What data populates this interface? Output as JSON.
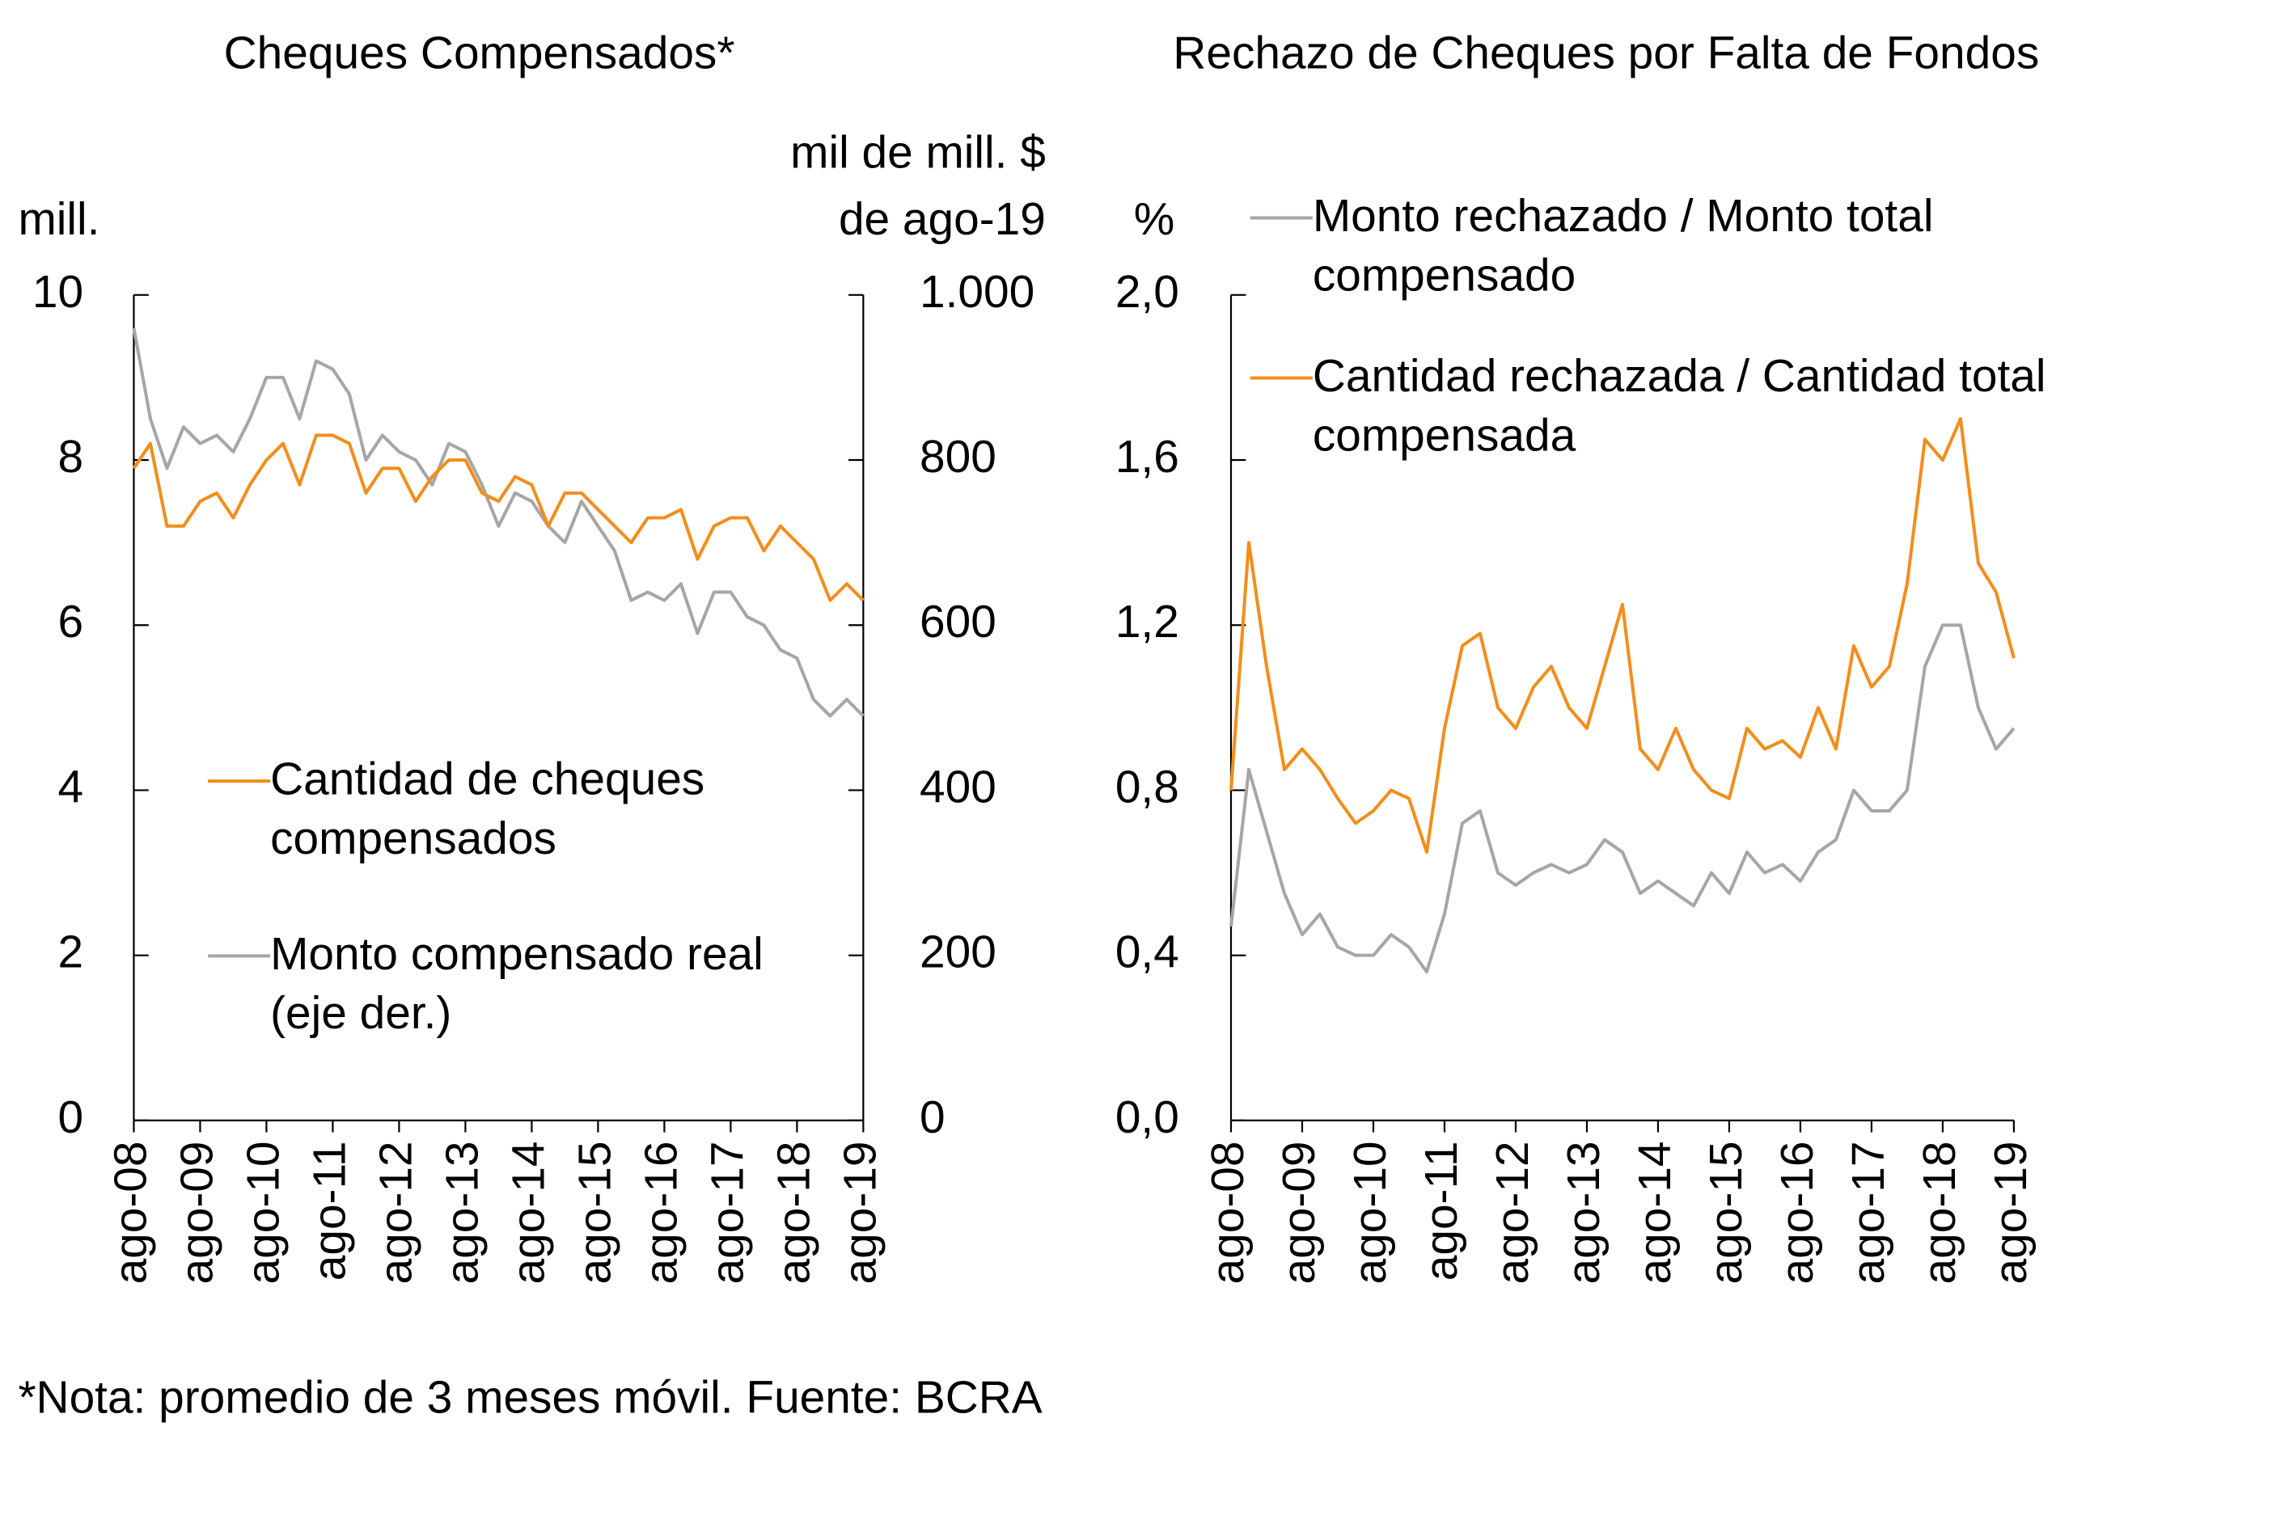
{
  "chart_data": [
    {
      "type": "line",
      "title": "Cheques Compensados*",
      "ylabel": "mill.",
      "y2label": [
        "mil de mill. $",
        "de ago-19"
      ],
      "categories": [
        "ago-08",
        null,
        null,
        null,
        "ago-09",
        null,
        null,
        null,
        "ago-10",
        null,
        null,
        null,
        "ago-11",
        null,
        null,
        null,
        "ago-12",
        null,
        null,
        null,
        "ago-13",
        null,
        null,
        null,
        "ago-14",
        null,
        null,
        null,
        "ago-15",
        null,
        null,
        null,
        "ago-16",
        null,
        null,
        null,
        "ago-17",
        null,
        null,
        null,
        "ago-18",
        null,
        null,
        null,
        "ago-19"
      ],
      "series": [
        {
          "name": "Monto compensado real (eje der.)",
          "color": "#a6a6a6",
          "axis": "y2",
          "values": [
            960,
            850,
            790,
            840,
            820,
            830,
            810,
            850,
            900,
            900,
            850,
            920,
            910,
            880,
            800,
            830,
            810,
            800,
            770,
            820,
            810,
            770,
            720,
            760,
            750,
            720,
            700,
            750,
            720,
            690,
            630,
            640,
            630,
            650,
            590,
            640,
            640,
            610,
            600,
            570,
            560,
            510,
            490,
            510,
            490
          ]
        },
        {
          "name": "Cantidad de cheques compensados",
          "color": "#f28e1c",
          "values": [
            7.9,
            8.2,
            7.2,
            7.2,
            7.5,
            7.6,
            7.3,
            7.7,
            8.0,
            8.2,
            7.7,
            8.3,
            8.3,
            8.2,
            7.6,
            7.9,
            7.9,
            7.5,
            7.8,
            8.0,
            8.0,
            7.6,
            7.5,
            7.8,
            7.7,
            7.2,
            7.6,
            7.6,
            7.4,
            7.2,
            7.0,
            7.3,
            7.3,
            7.4,
            6.8,
            7.2,
            7.3,
            7.3,
            6.9,
            7.2,
            7.0,
            6.8,
            6.3,
            6.5,
            6.3
          ]
        }
      ],
      "legend_order": [
        1,
        0
      ],
      "legend": "lower left",
      "ylim": [
        0,
        10
      ],
      "yticks": [
        0,
        2,
        4,
        6,
        8,
        10
      ],
      "y2lim": [
        0,
        1000
      ],
      "y2ticks": [
        0,
        200,
        400,
        600,
        800,
        {
          "value": 1000,
          "label": "1.000"
        }
      ]
    },
    {
      "type": "line",
      "title": "Rechazo de Cheques por Falta de Fondos",
      "ylabel": "%",
      "categories": [
        "ago-08",
        null,
        null,
        null,
        "ago-09",
        null,
        null,
        null,
        "ago-10",
        null,
        null,
        null,
        "ago-11",
        null,
        null,
        null,
        "ago-12",
        null,
        null,
        null,
        "ago-13",
        null,
        null,
        null,
        "ago-14",
        null,
        null,
        null,
        "ago-15",
        null,
        null,
        null,
        "ago-16",
        null,
        null,
        null,
        "ago-17",
        null,
        null,
        null,
        "ago-18",
        null,
        null,
        null,
        "ago-19"
      ],
      "series": [
        {
          "name": "Monto rechazado / Monto total compensado",
          "color": "#a6a6a6",
          "values": [
            0.47,
            0.85,
            0.7,
            0.55,
            0.45,
            0.5,
            0.42,
            0.4,
            0.4,
            0.45,
            0.42,
            0.36,
            0.5,
            0.72,
            0.75,
            0.6,
            0.57,
            0.6,
            0.62,
            0.6,
            0.62,
            0.68,
            0.65,
            0.55,
            0.58,
            0.55,
            0.52,
            0.6,
            0.55,
            0.65,
            0.6,
            0.62,
            0.58,
            0.65,
            0.68,
            0.8,
            0.75,
            0.75,
            0.8,
            1.1,
            1.2,
            1.2,
            1.0,
            0.9,
            0.95
          ]
        },
        {
          "name": "Cantidad rechazada / Cantidad total compensada",
          "color": "#f28e1c",
          "values": [
            0.8,
            1.4,
            1.1,
            0.85,
            0.9,
            0.85,
            0.78,
            0.72,
            0.75,
            0.8,
            0.78,
            0.65,
            0.95,
            1.15,
            1.18,
            1.0,
            0.95,
            1.05,
            1.1,
            1.0,
            0.95,
            1.1,
            1.25,
            0.9,
            0.85,
            0.95,
            0.85,
            0.8,
            0.78,
            0.95,
            0.9,
            0.92,
            0.88,
            1.0,
            0.9,
            1.15,
            1.05,
            1.1,
            1.3,
            1.65,
            1.6,
            1.7,
            1.35,
            1.28,
            1.12
          ]
        }
      ],
      "legend_order": [
        0,
        1
      ],
      "legend": "upper left",
      "ylim": [
        0,
        2
      ],
      "yticks": [
        {
          "value": 0,
          "label": "0,0"
        },
        {
          "value": 0.4,
          "label": "0,4"
        },
        {
          "value": 0.8,
          "label": "0,8"
        },
        {
          "value": 1.2,
          "label": "1,2"
        },
        {
          "value": 1.6,
          "label": "1,6"
        },
        {
          "value": 2,
          "label": "2,0"
        }
      ]
    }
  ],
  "note": "*Nota: promedio de 3 meses móvil. Fuente: BCRA"
}
